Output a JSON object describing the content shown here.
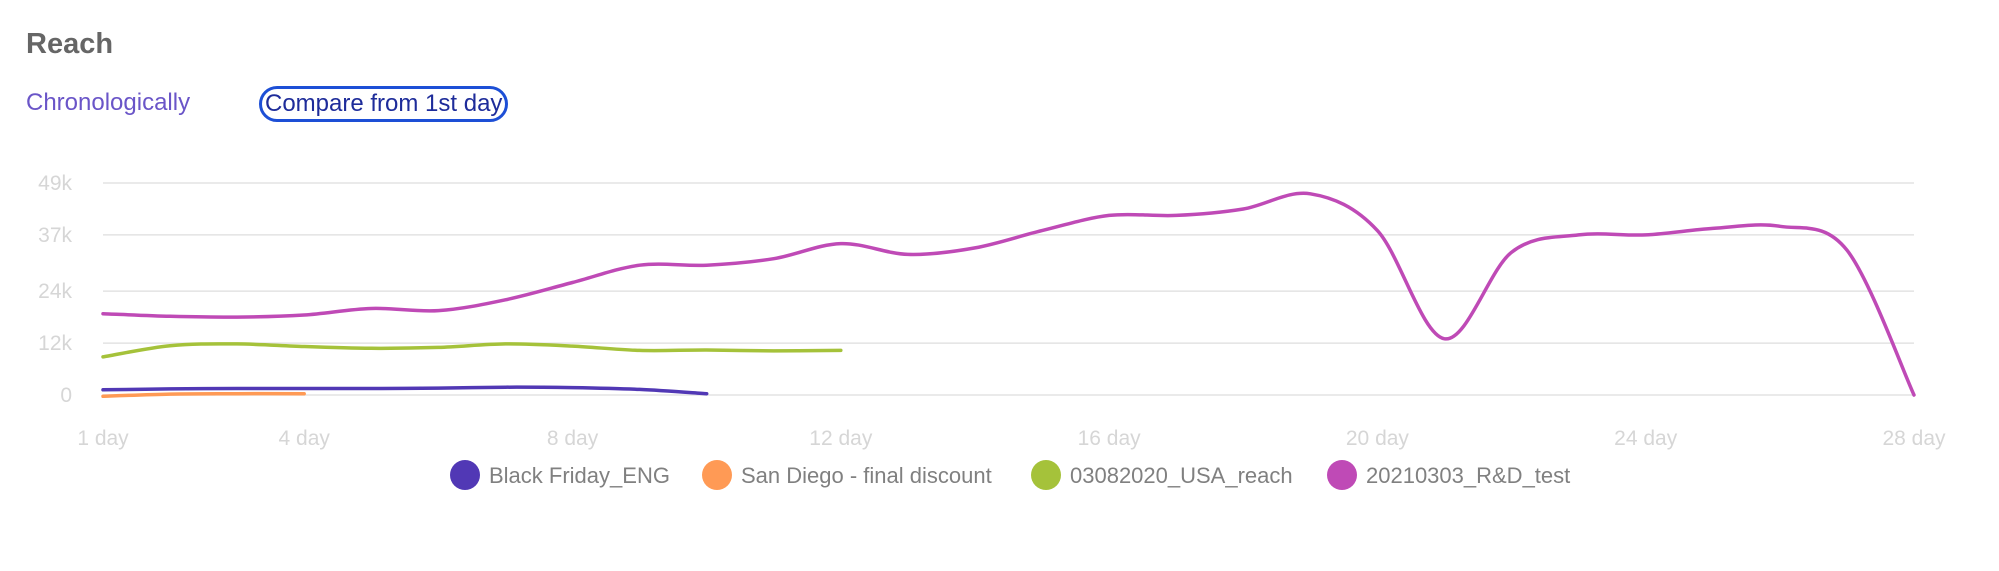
{
  "header": {
    "title": "Reach",
    "mode_chronological": "Chronologically",
    "mode_compare": "Compare from 1st day"
  },
  "colors": {
    "Black Friday_ENG": "#5138b5",
    "San Diego - final discount": "#ff9a55",
    "03082020_USA_reach": "#a5c23a",
    "20210303_R&D_test": "#bf4ab6",
    "grid": "#e3e3e3",
    "tick": "#d6d6d6"
  },
  "chart_data": {
    "type": "line",
    "title": "",
    "xlabel": "",
    "ylabel": "",
    "xlim": [
      1,
      28
    ],
    "ylim": [
      0,
      49000
    ],
    "grid": true,
    "legend_position": "bottom",
    "x_ticks": [
      {
        "value": 1,
        "label": "1 day"
      },
      {
        "value": 4,
        "label": "4 day"
      },
      {
        "value": 8,
        "label": "8 day"
      },
      {
        "value": 12,
        "label": "12 day"
      },
      {
        "value": 16,
        "label": "16 day"
      },
      {
        "value": 20,
        "label": "20 day"
      },
      {
        "value": 24,
        "label": "24 day"
      },
      {
        "value": 28,
        "label": "28 day"
      }
    ],
    "y_ticks": [
      {
        "value": 0,
        "label": "0"
      },
      {
        "value": 12000,
        "label": "12k"
      },
      {
        "value": 24000,
        "label": "24k"
      },
      {
        "value": 37000,
        "label": "37k"
      },
      {
        "value": 49000,
        "label": "49k"
      }
    ],
    "series": [
      {
        "name": "Black Friday_ENG",
        "x": [
          1,
          2,
          3,
          4,
          5,
          6,
          7,
          8,
          9,
          10
        ],
        "y": [
          1200,
          1400,
          1500,
          1500,
          1500,
          1600,
          1800,
          1700,
          1300,
          300
        ]
      },
      {
        "name": "San Diego - final discount",
        "x": [
          1,
          2,
          3,
          4
        ],
        "y": [
          -300,
          200,
          300,
          300
        ]
      },
      {
        "name": "03082020_USA_reach",
        "x": [
          1,
          2,
          3,
          4,
          5,
          6,
          7,
          8,
          9,
          10,
          11,
          12
        ],
        "y": [
          8800,
          11400,
          11800,
          11200,
          10800,
          11000,
          11800,
          11300,
          10300,
          10400,
          10200,
          10300
        ]
      },
      {
        "name": "20210303_R&D_test",
        "x": [
          1,
          2,
          3,
          4,
          5,
          6,
          7,
          8,
          9,
          10,
          11,
          12,
          13,
          14,
          15,
          16,
          17,
          18,
          19,
          20,
          21,
          22,
          23,
          24,
          25,
          26,
          27,
          28
        ],
        "y": [
          18800,
          18200,
          18000,
          18500,
          20000,
          19500,
          22000,
          26000,
          30000,
          30000,
          31500,
          35000,
          32500,
          34000,
          38000,
          41500,
          41500,
          43000,
          46500,
          38000,
          13000,
          33000,
          37000,
          37000,
          38500,
          39000,
          33500,
          0
        ]
      }
    ]
  }
}
